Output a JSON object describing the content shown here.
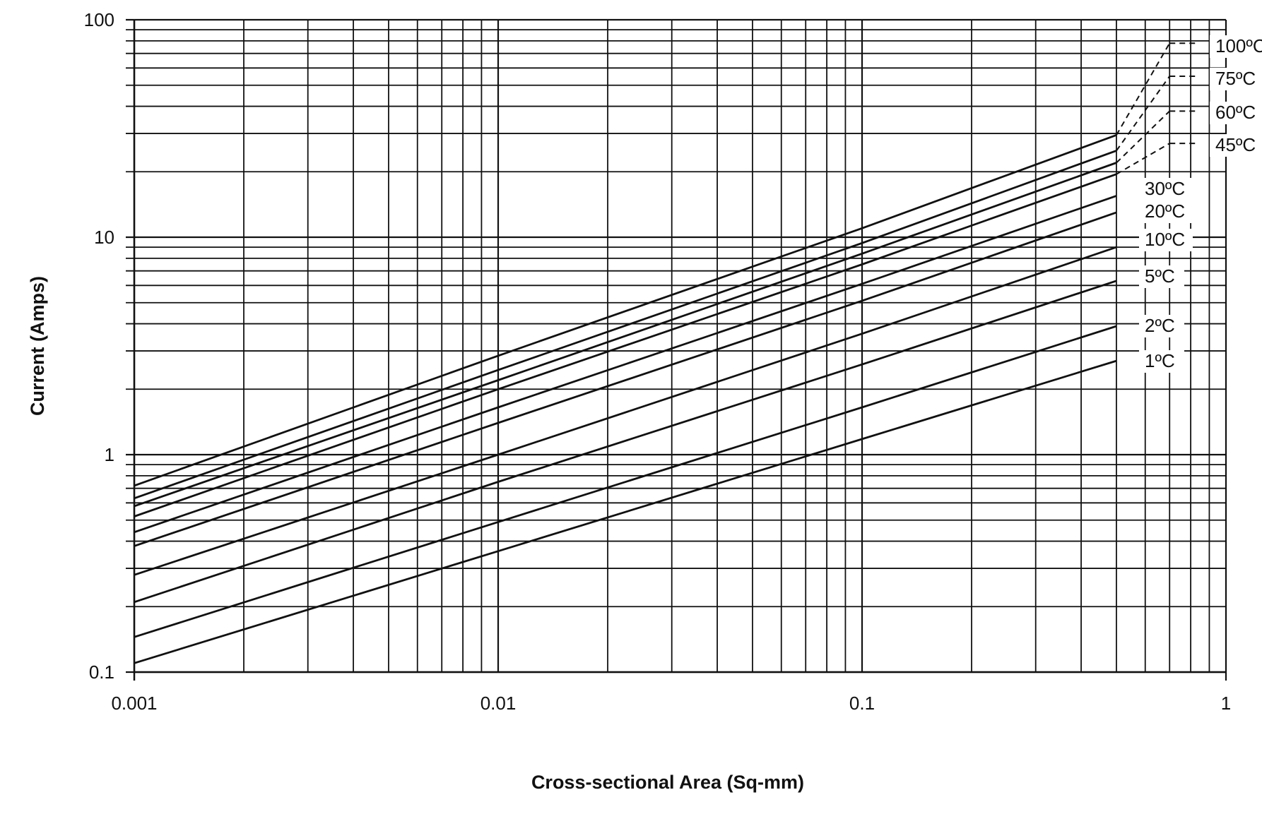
{
  "chart_data": {
    "type": "line",
    "title": "",
    "xlabel": "Cross-sectional Area (Sq-mm)",
    "ylabel": "Current (Amps)",
    "x_scale": "log",
    "y_scale": "log",
    "xlim": [
      0.001,
      1
    ],
    "ylim": [
      0.1,
      100
    ],
    "grid": true,
    "x_ticks": [
      {
        "value": 0.001,
        "label": "0.001"
      },
      {
        "value": 0.01,
        "label": "0.01"
      },
      {
        "value": 0.1,
        "label": "0.1"
      },
      {
        "value": 1,
        "label": "1"
      }
    ],
    "y_ticks": [
      {
        "value": 0.1,
        "label": "0.1"
      },
      {
        "value": 1,
        "label": "1"
      },
      {
        "value": 10,
        "label": "10"
      },
      {
        "value": 100,
        "label": "100"
      }
    ],
    "series": [
      {
        "name": "1ºC",
        "x": [
          0.001,
          0.01,
          0.1,
          0.5
        ],
        "y": [
          0.11,
          0.36,
          1.18,
          2.7
        ]
      },
      {
        "name": "2ºC",
        "x": [
          0.001,
          0.01,
          0.1,
          0.5
        ],
        "y": [
          0.145,
          0.49,
          1.65,
          3.9
        ]
      },
      {
        "name": "5ºC",
        "x": [
          0.001,
          0.01,
          0.1,
          0.5
        ],
        "y": [
          0.21,
          0.75,
          2.6,
          6.3
        ]
      },
      {
        "name": "10ºC",
        "x": [
          0.001,
          0.01,
          0.1,
          0.5
        ],
        "y": [
          0.28,
          1.0,
          3.6,
          9.0
        ]
      },
      {
        "name": "20ºC",
        "x": [
          0.001,
          0.01,
          0.1,
          0.5
        ],
        "y": [
          0.38,
          1.4,
          5.1,
          13.0
        ]
      },
      {
        "name": "30ºC",
        "x": [
          0.001,
          0.01,
          0.1,
          0.5
        ],
        "y": [
          0.44,
          1.65,
          6.1,
          15.5
        ]
      },
      {
        "name": "45ºC",
        "x": [
          0.001,
          0.01,
          0.1,
          0.5,
          0.7
        ],
        "y": [
          0.52,
          2.0,
          7.5,
          19.5,
          27.0
        ],
        "dashed_from_x": 0.5
      },
      {
        "name": "60ºC",
        "x": [
          0.001,
          0.01,
          0.1,
          0.5,
          0.7
        ],
        "y": [
          0.58,
          2.2,
          8.4,
          22.0,
          38.0
        ],
        "dashed_from_x": 0.5
      },
      {
        "name": "75ºC",
        "x": [
          0.001,
          0.01,
          0.1,
          0.5,
          0.7
        ],
        "y": [
          0.63,
          2.45,
          9.4,
          25.0,
          55.0
        ],
        "dashed_from_x": 0.5
      },
      {
        "name": "100ºC",
        "x": [
          0.001,
          0.01,
          0.1,
          0.5,
          0.7
        ],
        "y": [
          0.72,
          2.85,
          11.0,
          29.5,
          78.0
        ],
        "dashed_from_x": 0.5
      }
    ]
  }
}
